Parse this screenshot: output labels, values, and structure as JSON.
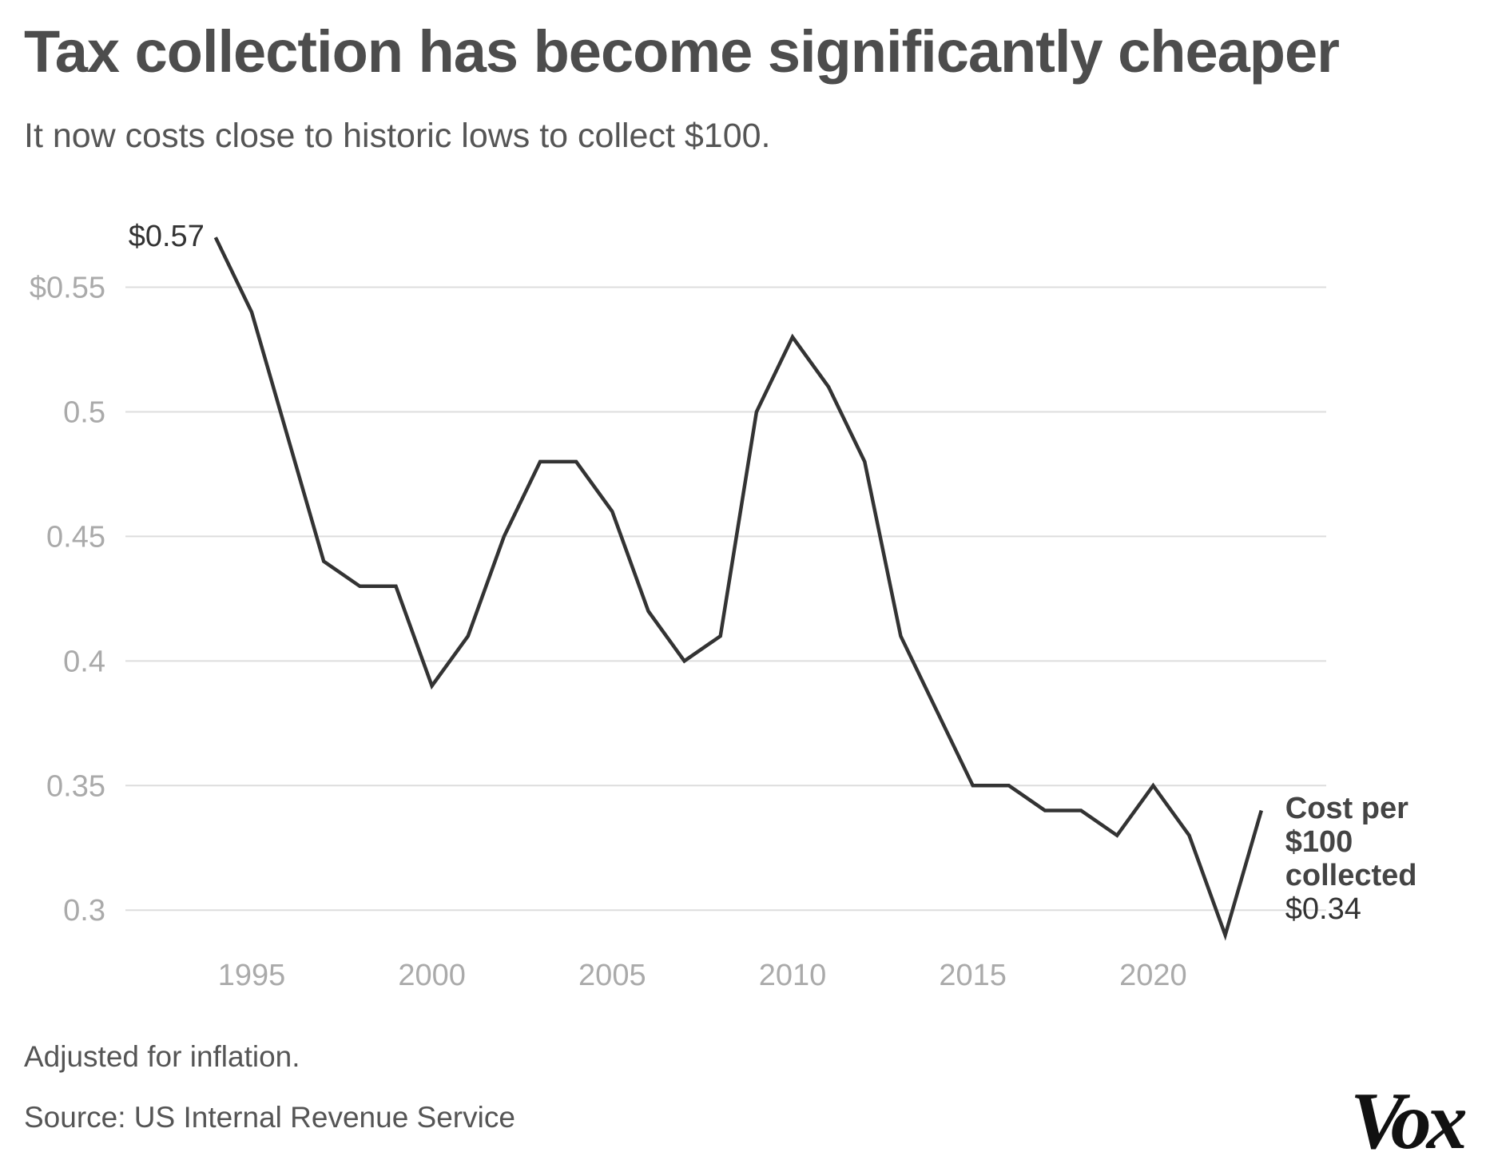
{
  "title": "Tax collection has become significantly cheaper",
  "subtitle": "It now costs close to historic lows to collect $100.",
  "footnote": "Adjusted for inflation.",
  "source": "Source: US Internal Revenue Service",
  "logo": "Vox",
  "colors": {
    "line": "#333333",
    "grid": "#dddddd",
    "tick": "#aaaaaa",
    "title": "#4d4d4d",
    "text": "#555555"
  },
  "chart_data": {
    "type": "line",
    "title": "Tax collection has become significantly cheaper",
    "xlabel": "",
    "ylabel": "",
    "xlim": [
      1991.5,
      2024.8
    ],
    "ylim": [
      0.285,
      0.58
    ],
    "grid": true,
    "x_ticks": [
      {
        "value": 1995,
        "label": "1995"
      },
      {
        "value": 2000,
        "label": "2000"
      },
      {
        "value": 2005,
        "label": "2005"
      },
      {
        "value": 2010,
        "label": "2010"
      },
      {
        "value": 2015,
        "label": "2015"
      },
      {
        "value": 2020,
        "label": "2020"
      }
    ],
    "y_ticks": [
      {
        "value": 0.3,
        "label": "0.3"
      },
      {
        "value": 0.35,
        "label": "0.35"
      },
      {
        "value": 0.4,
        "label": "0.4"
      },
      {
        "value": 0.45,
        "label": "0.45"
      },
      {
        "value": 0.5,
        "label": "0.5"
      },
      {
        "value": 0.55,
        "label": "$0.55"
      }
    ],
    "series": [
      {
        "name": "Cost per $100 collected",
        "x": [
          1994,
          1995,
          1996,
          1997,
          1998,
          1999,
          2000,
          2001,
          2002,
          2003,
          2004,
          2005,
          2006,
          2007,
          2008,
          2009,
          2010,
          2011,
          2012,
          2013,
          2014,
          2015,
          2016,
          2017,
          2018,
          2019,
          2020,
          2021,
          2022,
          2023
        ],
        "values": [
          0.57,
          0.54,
          0.49,
          0.44,
          0.43,
          0.43,
          0.39,
          0.41,
          0.45,
          0.48,
          0.48,
          0.46,
          0.42,
          0.4,
          0.41,
          0.5,
          0.53,
          0.51,
          0.48,
          0.41,
          0.38,
          0.35,
          0.35,
          0.34,
          0.34,
          0.33,
          0.35,
          0.33,
          0.29,
          0.34
        ]
      }
    ],
    "annotations": {
      "start_value": "$0.57",
      "end_label_lines": [
        "Cost per",
        "$100",
        "collected"
      ],
      "end_value": "$0.34"
    }
  }
}
